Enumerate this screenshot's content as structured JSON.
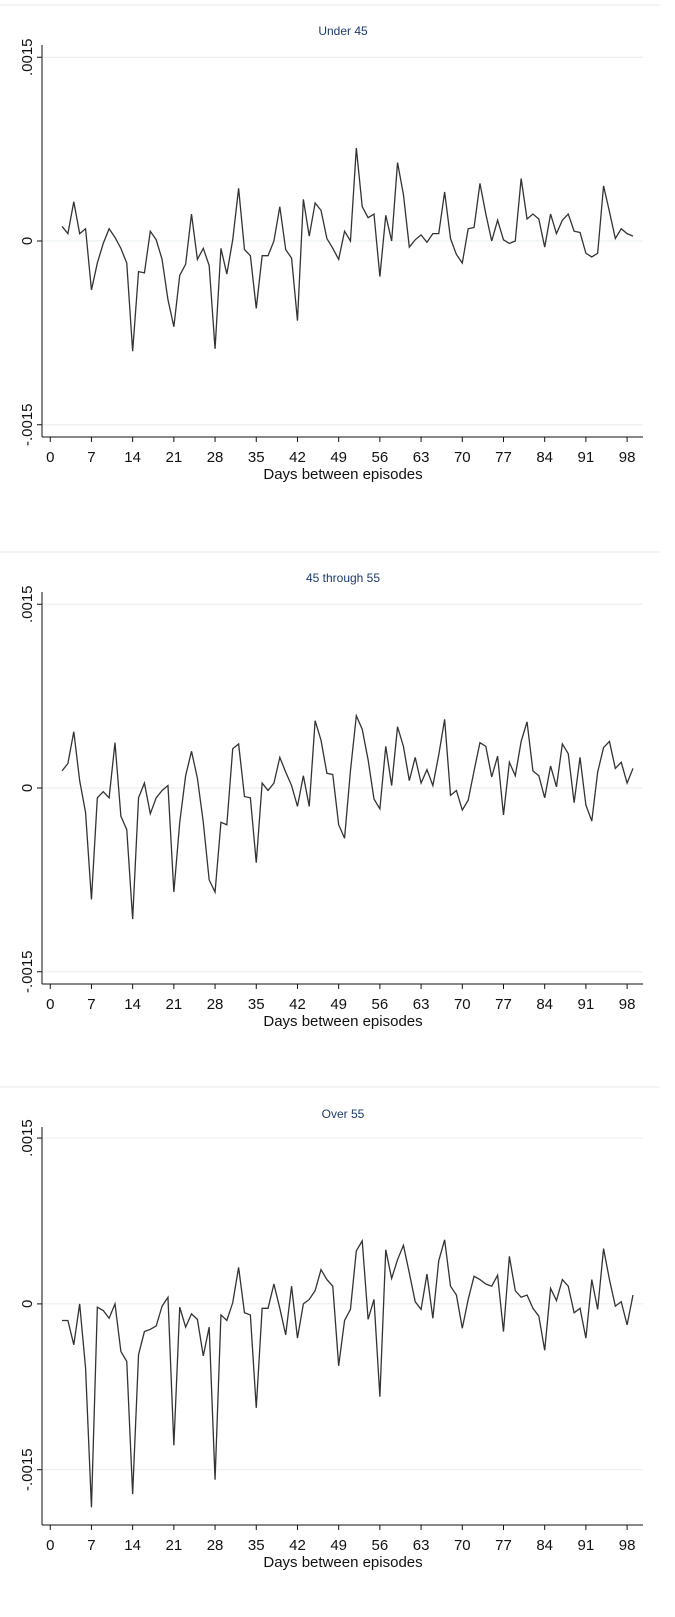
{
  "chart_data": [
    {
      "type": "line",
      "title": "Under 45",
      "xlabel": "Days between episodes",
      "x": [
        2,
        3,
        4,
        5,
        6,
        7,
        8,
        9,
        10,
        11,
        12,
        13,
        14,
        15,
        16,
        17,
        18,
        19,
        20,
        21,
        22,
        23,
        24,
        25,
        26,
        27,
        28,
        29,
        30,
        31,
        32,
        33,
        34,
        35,
        36,
        37,
        38,
        39,
        40,
        41,
        42,
        43,
        44,
        45,
        46,
        47,
        48,
        49,
        50,
        51,
        52,
        53,
        54,
        55,
        56,
        57,
        58,
        59,
        60,
        61,
        62,
        63,
        64,
        65,
        66,
        67,
        68,
        69,
        70,
        71,
        72,
        73,
        74,
        75,
        76,
        77,
        78,
        79,
        80,
        81,
        82,
        83,
        84,
        85,
        86,
        87,
        88,
        89,
        90,
        91,
        92,
        93,
        94,
        95,
        96,
        97,
        98,
        99
      ],
      "series": [
        {
          "color": "#333333",
          "values": [
            0.00012,
            6e-05,
            0.00032,
            6e-05,
            0.0001,
            -0.0004,
            -0.00018,
            -2e-05,
            0.0001,
            3e-05,
            -6e-05,
            -0.00018,
            -0.0009,
            -0.00025,
            -0.00026,
            8e-05,
            1e-05,
            -0.00015,
            -0.00048,
            -0.0007,
            -0.00028,
            -0.00019,
            0.00022,
            -0.00015,
            -6e-05,
            -0.0002,
            -0.00088,
            -6e-05,
            -0.00027,
            1e-05,
            0.00043,
            -7e-05,
            -0.00012,
            -0.00055,
            -0.00012,
            -0.00012,
            0,
            0.00028,
            -7e-05,
            -0.00014,
            -0.00065,
            0.00034,
            4e-05,
            0.00031,
            0.00025,
            2e-05,
            -6e-05,
            -0.00015,
            8e-05,
            0,
            0.00076,
            0.00028,
            0.00019,
            0.00022,
            -0.00029,
            0.00021,
            0,
            0.00064,
            0.00038,
            -5e-05,
            1e-05,
            5e-05,
            -1e-05,
            6e-05,
            6e-05,
            0.0004,
            2e-05,
            -0.00011,
            -0.00018,
            0.0001,
            0.00011,
            0.00047,
            0.00022,
            0,
            0.00017,
            1e-05,
            -2e-05,
            0,
            0.00051,
            0.00018,
            0.00022,
            0.00018,
            -5e-05,
            0.00022,
            6e-05,
            0.00017,
            0.00022,
            8e-05,
            7e-05,
            -0.0001,
            -0.00013,
            -0.0001,
            0.00045,
            0.00024,
            2e-05,
            0.0001,
            6e-05,
            4e-05
          ]
        }
      ],
      "xlim": [
        -1.4,
        100.7
      ],
      "xticks": [
        0,
        7,
        14,
        21,
        28,
        35,
        42,
        49,
        56,
        63,
        70,
        77,
        84,
        91,
        98
      ],
      "ylim": [
        -0.0016,
        0.0016
      ],
      "yticks": [
        {
          "value": -0.0015,
          "label": "-.0015"
        },
        0,
        {
          "value": 0.0015,
          "label": ".0015"
        }
      ],
      "grid": true
    },
    {
      "type": "line",
      "title": "45 through 55",
      "xlabel": "Days between episodes",
      "x": [
        2,
        3,
        4,
        5,
        6,
        7,
        8,
        9,
        10,
        11,
        12,
        13,
        14,
        15,
        16,
        17,
        18,
        19,
        20,
        21,
        22,
        23,
        24,
        25,
        26,
        27,
        28,
        29,
        30,
        31,
        32,
        33,
        34,
        35,
        36,
        37,
        38,
        39,
        40,
        41,
        42,
        43,
        44,
        45,
        46,
        47,
        48,
        49,
        50,
        51,
        52,
        53,
        54,
        55,
        56,
        57,
        58,
        59,
        60,
        61,
        62,
        63,
        64,
        65,
        66,
        67,
        68,
        69,
        70,
        71,
        72,
        73,
        74,
        75,
        76,
        77,
        78,
        79,
        80,
        81,
        82,
        83,
        84,
        85,
        86,
        87,
        88,
        89,
        90,
        91,
        92,
        93,
        94,
        95,
        96,
        97,
        98,
        99
      ],
      "series": [
        {
          "color": "#333333",
          "values": [
            0.00014,
            0.0002,
            0.00046,
            6e-05,
            -0.0002,
            -0.00091,
            -8e-05,
            -3e-05,
            -8e-05,
            0.00037,
            -0.00023,
            -0.00034,
            -0.00107,
            -8e-05,
            4e-05,
            -0.00021,
            -8e-05,
            -2e-05,
            2e-05,
            -0.00085,
            -0.00028,
            0.0001,
            0.0003,
            8e-05,
            -0.00028,
            -0.00075,
            -0.00085,
            -0.00028,
            -0.0003,
            0.00032,
            0.00036,
            -7e-05,
            -8e-05,
            -0.00061,
            4e-05,
            -2e-05,
            4e-05,
            0.00025,
            0.00013,
            2e-05,
            -0.00015,
            0.0001,
            -0.00015,
            0.00055,
            0.00039,
            0.00012,
            0.00011,
            -0.0003,
            -0.00041,
            0.00014,
            0.00059,
            0.00048,
            0.00023,
            -9e-05,
            -0.00017,
            0.00034,
            2e-05,
            0.0005,
            0.00034,
            6e-05,
            0.00025,
            4e-05,
            0.00015,
            2e-05,
            0.00027,
            0.00056,
            -6e-05,
            -2e-05,
            -0.00018,
            -0.0001,
            0.00014,
            0.00037,
            0.00034,
            9e-05,
            0.00026,
            -0.00022,
            0.00021,
            0.0001,
            0.00038,
            0.00054,
            0.00014,
            0.0001,
            -8e-05,
            0.00018,
            1e-05,
            0.00036,
            0.00028,
            -0.00012,
            0.00025,
            -0.00014,
            -0.00027,
            0.00013,
            0.00033,
            0.00038,
            0.00016,
            0.00021,
            4e-05,
            0.00016
          ]
        }
      ],
      "xlim": [
        -1.4,
        100.7
      ],
      "xticks": [
        0,
        7,
        14,
        21,
        28,
        35,
        42,
        49,
        56,
        63,
        70,
        77,
        84,
        91,
        98
      ],
      "ylim": [
        -0.0016,
        0.0016
      ],
      "yticks": [
        {
          "value": -0.0015,
          "label": "-.0015"
        },
        0,
        {
          "value": 0.0015,
          "label": ".0015"
        }
      ],
      "grid": true
    },
    {
      "type": "line",
      "title": "Over 55",
      "xlabel": "Days between episodes",
      "x": [
        2,
        3,
        4,
        5,
        6,
        7,
        8,
        9,
        10,
        11,
        12,
        13,
        14,
        15,
        16,
        17,
        18,
        19,
        20,
        21,
        22,
        23,
        24,
        25,
        26,
        27,
        28,
        29,
        30,
        31,
        32,
        33,
        34,
        35,
        36,
        37,
        38,
        39,
        40,
        41,
        42,
        43,
        44,
        45,
        46,
        47,
        48,
        49,
        50,
        51,
        52,
        53,
        54,
        55,
        56,
        57,
        58,
        59,
        60,
        61,
        62,
        63,
        64,
        65,
        66,
        67,
        68,
        69,
        70,
        71,
        72,
        73,
        74,
        75,
        76,
        77,
        78,
        79,
        80,
        81,
        82,
        83,
        84,
        85,
        86,
        87,
        88,
        89,
        90,
        91,
        92,
        93,
        94,
        95,
        96,
        97,
        98,
        99
      ],
      "series": [
        {
          "color": "#333333",
          "values": [
            -0.00015,
            -0.00015,
            -0.00037,
            0,
            -0.00058,
            -0.00184,
            -3e-05,
            -6e-05,
            -0.00013,
            0,
            -0.00043,
            -0.00052,
            -0.00172,
            -0.00046,
            -0.00025,
            -0.00023,
            -0.0002,
            -2e-05,
            6e-05,
            -0.00128,
            -3e-05,
            -0.00021,
            -9e-05,
            -0.00014,
            -0.00047,
            -0.00021,
            -0.00159,
            -0.0001,
            -0.00015,
            1e-05,
            0.00033,
            -8e-05,
            -0.0001,
            -0.00094,
            -4e-05,
            -4e-05,
            0.00018,
            -4e-05,
            -0.00028,
            0.00016,
            -0.00031,
            0,
            4e-05,
            0.00012,
            0.00031,
            0.00022,
            0.00016,
            -0.00056,
            -0.00015,
            -5e-05,
            0.00048,
            0.00057,
            -0.00014,
            4e-05,
            -0.00084,
            0.00049,
            0.00023,
            0.0004,
            0.00053,
            0.00028,
            2e-05,
            -5e-05,
            0.00027,
            -0.00013,
            0.00039,
            0.00058,
            0.00016,
            8e-05,
            -0.00022,
            4e-05,
            0.00025,
            0.00022,
            0.00018,
            0.00016,
            0.00026,
            -0.00025,
            0.00043,
            0.00012,
            6e-05,
            8e-05,
            -4e-05,
            -0.00011,
            -0.00042,
            0.00014,
            3e-05,
            0.00022,
            0.00016,
            -8e-05,
            -4e-05,
            -0.00031,
            0.00022,
            -5e-05,
            0.0005,
            0.00022,
            -2e-05,
            2e-05,
            -0.00019,
            8e-05
          ]
        }
      ],
      "xlim": [
        -1.4,
        100.7
      ],
      "xticks": [
        0,
        7,
        14,
        21,
        28,
        35,
        42,
        49,
        56,
        63,
        70,
        77,
        84,
        91,
        98
      ],
      "ylim": [
        -0.002,
        0.0016
      ],
      "yticks": [
        {
          "value": -0.0015,
          "label": "-.0015"
        },
        0,
        {
          "value": 0.0015,
          "label": ".0015"
        }
      ],
      "grid": true
    }
  ]
}
